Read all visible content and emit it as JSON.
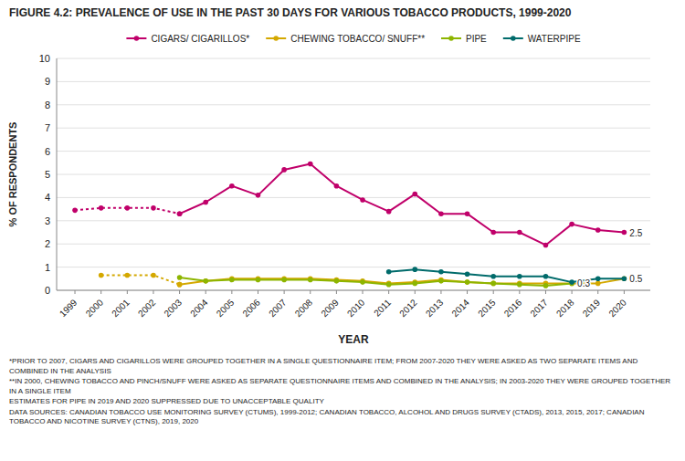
{
  "chart_data": {
    "type": "line",
    "title": "FIGURE 4.2: PREVALENCE OF USE IN THE PAST 30 DAYS FOR VARIOUS TOBACCO PRODUCTS, 1999-2020",
    "x_label": "YEAR",
    "y_label": "% OF RESPONDENTS",
    "x": [
      1999,
      2000,
      2001,
      2002,
      2003,
      2004,
      2005,
      2006,
      2007,
      2008,
      2009,
      2010,
      2011,
      2012,
      2013,
      2014,
      2015,
      2016,
      2017,
      2018,
      2019,
      2020
    ],
    "xlim": [
      1998.3,
      2021.0
    ],
    "xticks": [
      1999,
      2000,
      2001,
      2002,
      2003,
      2004,
      2005,
      2006,
      2007,
      2008,
      2009,
      2010,
      2011,
      2012,
      2013,
      2014,
      2015,
      2016,
      2017,
      2018,
      2019,
      2020
    ],
    "ylim": [
      0,
      10
    ],
    "yticks": [
      0,
      1,
      2,
      3,
      4,
      5,
      6,
      7,
      8,
      9,
      10
    ],
    "grid": "y",
    "legend": "top",
    "series": [
      {
        "name": "CIGARS/ CIGARILLOS*",
        "color": "#c0006a",
        "marker": "circle",
        "line_style": "solid",
        "values": [
          null,
          null,
          null,
          null,
          3.3,
          3.8,
          4.5,
          4.1,
          5.2,
          5.45,
          4.5,
          3.9,
          3.4,
          4.15,
          3.3,
          3.3,
          2.5,
          2.5,
          1.95,
          2.85,
          2.6,
          2.5
        ]
      },
      {
        "color": "#c0006a",
        "marker": "circle",
        "line_style": "dotted",
        "values": [
          3.45,
          3.55,
          3.55,
          3.55,
          3.3,
          null,
          null,
          null,
          null,
          null,
          null,
          null,
          null,
          null,
          null,
          null,
          null,
          null,
          null,
          null,
          null,
          null
        ]
      },
      {
        "name": "CHEWING TOBACCO/ SNUFF**",
        "color": "#d4a800",
        "marker": "circle",
        "line_style": "solid",
        "values": [
          null,
          null,
          null,
          null,
          0.25,
          0.4,
          0.5,
          0.5,
          0.5,
          0.5,
          0.45,
          0.4,
          0.3,
          0.35,
          0.45,
          0.35,
          0.3,
          0.3,
          0.3,
          0.3,
          0.3,
          0.5
        ]
      },
      {
        "color": "#d4a800",
        "marker": "circle",
        "line_style": "dotted",
        "values": [
          null,
          0.65,
          0.65,
          0.65,
          0.25,
          null,
          null,
          null,
          null,
          null,
          null,
          null,
          null,
          null,
          null,
          null,
          null,
          null,
          null,
          null,
          null,
          null
        ]
      },
      {
        "name": "PIPE",
        "color": "#8db500",
        "marker": "circle",
        "line_style": "solid",
        "values": [
          null,
          null,
          null,
          null,
          0.55,
          0.4,
          0.45,
          0.45,
          0.45,
          0.45,
          0.4,
          0.35,
          0.25,
          0.3,
          0.4,
          0.35,
          0.3,
          0.25,
          0.2,
          0.3,
          null,
          null
        ]
      },
      {
        "name": "WATERPIPE",
        "color": "#006b6b",
        "marker": "circle",
        "line_style": "solid",
        "values": [
          null,
          null,
          null,
          null,
          null,
          null,
          null,
          null,
          null,
          null,
          null,
          null,
          0.8,
          0.9,
          0.8,
          0.7,
          0.6,
          0.6,
          0.6,
          0.35,
          0.5,
          0.5
        ]
      }
    ],
    "annotations": [
      {
        "text": "2.5",
        "x": 2020,
        "y": 2.5
      },
      {
        "text": "0.3",
        "x": 2018,
        "y": 0.3
      },
      {
        "text": "0.5",
        "x": 2020,
        "y": 0.5
      }
    ],
    "footnotes": [
      "*PRIOR TO 2007, CIGARS AND CIGARILLOS WERE GROUPED TOGETHER IN A SINGLE QUESTIONNAIRE ITEM; FROM 2007-2020 THEY WERE ASKED AS TWO SEPARATE ITEMS AND COMBINED IN THE ANALYSIS",
      "**IN 2000, CHEWING TOBACCO AND PINCH/SNUFF WERE ASKED AS SEPARATE QUESTIONNAIRE ITEMS AND COMBINED IN THE ANALYSIS; IN 2003-2020 THEY WERE GROUPED TOGETHER IN A SINGLE ITEM",
      "ESTIMATES FOR PIPE IN 2019 AND 2020 SUPPRESSED DUE TO UNACCEPTABLE QUALITY",
      "DATA SOURCES: CANADIAN TOBACCO USE MONITORING SURVEY (CTUMS), 1999-2012; CANADIAN TOBACCO, ALCOHOL AND DRUGS SURVEY (CTADS), 2013, 2015, 2017; CANADIAN TOBACCO AND NICOTINE SURVEY (CTNS), 2019, 2020"
    ]
  }
}
